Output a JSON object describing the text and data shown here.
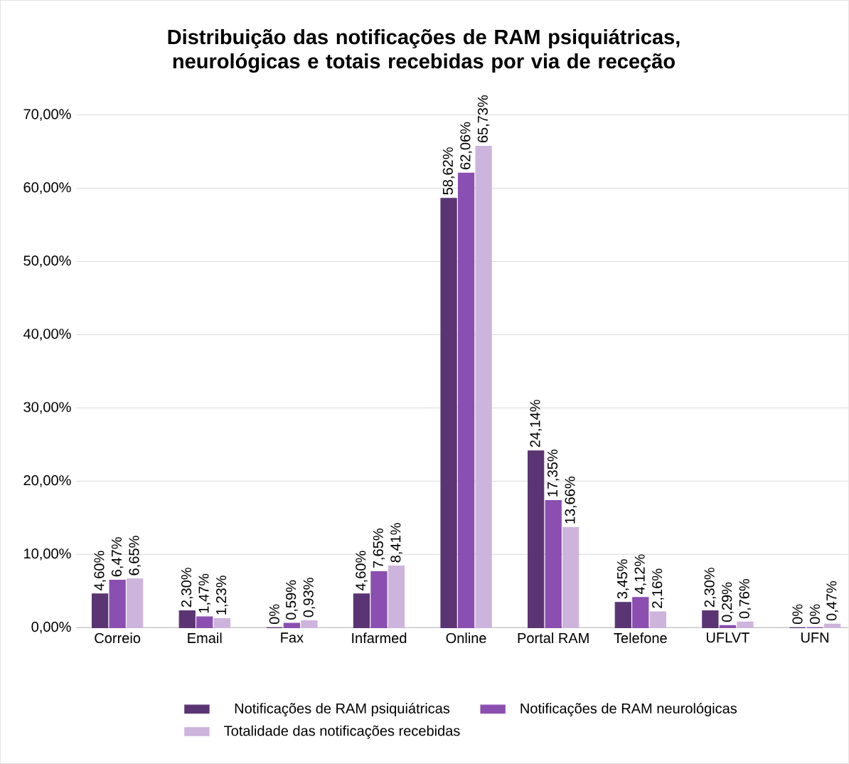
{
  "chart_data": {
    "type": "bar",
    "title": "Distribuição das notificações de RAM psiquiátricas, neurológicas e totais recebidas por via de receção",
    "categories": [
      "Correio",
      "Email",
      "Fax",
      "Infarmed",
      "Online",
      "Portal RAM",
      "Telefone",
      "UFLVT",
      "UFN"
    ],
    "series": [
      {
        "name": "Notificações de RAM psiquiátricas",
        "color": "#5b3573",
        "values": [
          4.6,
          2.3,
          0,
          4.6,
          58.62,
          24.14,
          3.45,
          2.3,
          0
        ],
        "value_labels": [
          "4,60%",
          "2,30%",
          "0%",
          "4,60%",
          "58,62%",
          "24,14%",
          "3,45%",
          "2,30%",
          "0%"
        ]
      },
      {
        "name": "Notificações de RAM neurológicas",
        "color": "#8a4fb0",
        "values": [
          6.47,
          1.47,
          0.59,
          7.65,
          62.06,
          17.35,
          4.12,
          0.29,
          0
        ],
        "value_labels": [
          "6,47%",
          "1,47%",
          "0,59%",
          "7,65%",
          "62,06%",
          "17,35%",
          "4,12%",
          "0,29%",
          "0%"
        ]
      },
      {
        "name": "Totalidade das notificações recebidas",
        "color": "#cdb4dc",
        "values": [
          6.65,
          1.23,
          0.93,
          8.41,
          65.73,
          13.66,
          2.16,
          0.76,
          0.47
        ],
        "value_labels": [
          "6,65%",
          "1,23%",
          "0,93%",
          "8,41%",
          "65,73%",
          "13,66%",
          "2,16%",
          "0,76%",
          "0,47%"
        ]
      }
    ],
    "ylim": [
      0,
      70
    ],
    "yticks": [
      {
        "value": 0,
        "label": "0,00%"
      },
      {
        "value": 10,
        "label": "10,00%"
      },
      {
        "value": 20,
        "label": "20,00%"
      },
      {
        "value": 30,
        "label": "30,00%"
      },
      {
        "value": 40,
        "label": "40,00%"
      },
      {
        "value": 50,
        "label": "50,00%"
      },
      {
        "value": 60,
        "label": "60,00%"
      },
      {
        "value": 70,
        "label": "70,00%"
      }
    ],
    "grid": "y",
    "legend": "bottom"
  }
}
